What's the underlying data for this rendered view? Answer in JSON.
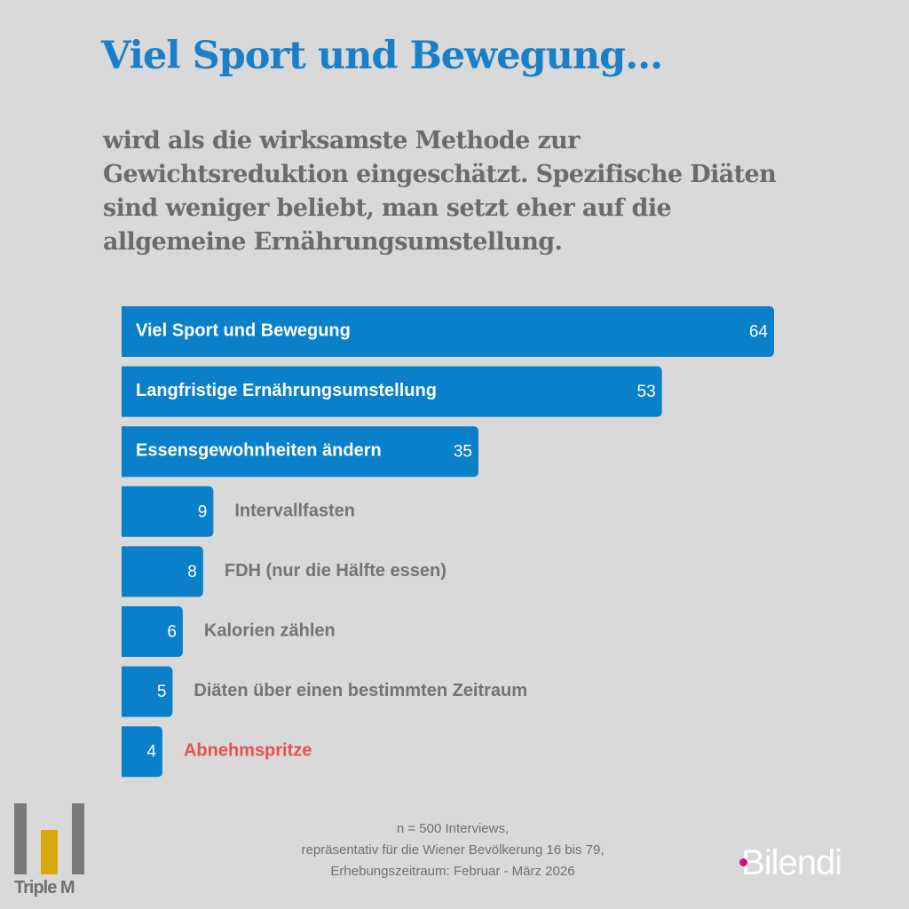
{
  "header": {
    "title": "Viel Sport und Bewegung...",
    "subtitle": "wird als die wirksamste Methode zur Gewichtsreduktion eingeschätzt. Spezifische Diäten sind weniger beliebt, man setzt eher auf die allgemeine Ernährungsumstellung."
  },
  "chart_data": {
    "type": "bar",
    "orientation": "horizontal",
    "categories": [
      "Viel Sport und Bewegung",
      "Langfristige Ernährungsumstellung",
      "Essensgewohnheiten ändern",
      "Intervallfasten",
      "FDH (nur die Hälfte essen)",
      "Kalorien zählen",
      "Diäten über einen bestimmten Zeitraum",
      "Abnehmspritze"
    ],
    "values": [
      64,
      53,
      35,
      9,
      8,
      6,
      5,
      4
    ],
    "highlight_category": "Abnehmspritze",
    "xlim": [
      0,
      64
    ],
    "grid": false,
    "colors": {
      "bar": "#0a7fca",
      "label_inside": "#ffffff",
      "label_outside": "#737373",
      "highlight": "#e8504f"
    }
  },
  "footer": {
    "lines": [
      "n = 500 Interviews,",
      "repräsentativ für die Wiener Bevölkerung 16 bis 79,",
      "Erhebungszeitraum: Februar - März  2026"
    ]
  },
  "logos": {
    "left": "Triple M",
    "right": "Bilendi"
  }
}
